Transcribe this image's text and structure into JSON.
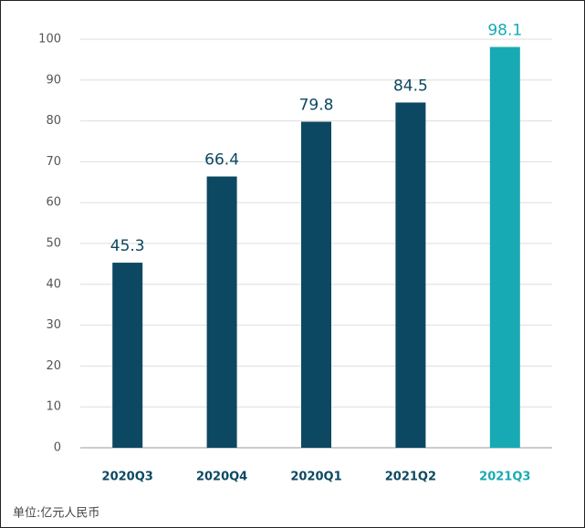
{
  "chart_data": {
    "type": "bar",
    "categories": [
      "2020Q3",
      "2020Q4",
      "2020Q1",
      "2021Q2",
      "2021Q3"
    ],
    "values": [
      45.3,
      66.4,
      79.8,
      84.5,
      98.1
    ],
    "colors": [
      "#0c4862",
      "#0c4862",
      "#0c4862",
      "#0c4862",
      "#18aab4"
    ],
    "ylim": [
      0,
      100
    ],
    "yticks": [
      0,
      10,
      20,
      30,
      40,
      50,
      60,
      70,
      80,
      90,
      100
    ],
    "grid": true,
    "note": "单位:亿元人民币"
  }
}
